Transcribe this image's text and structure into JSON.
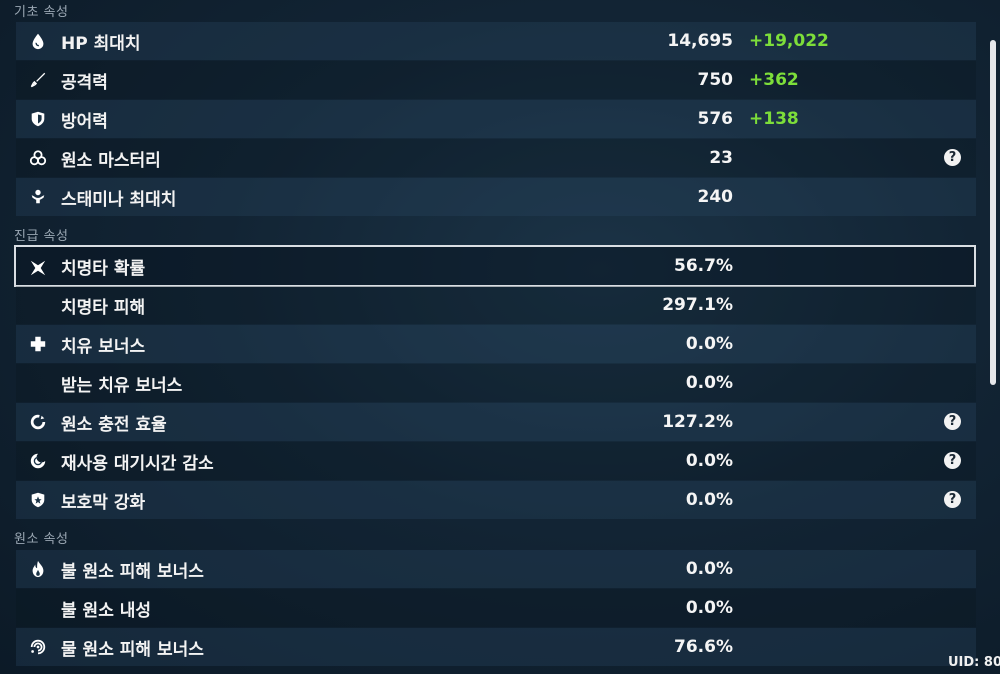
{
  "sections": {
    "basic": "기초 속성",
    "advanced": "진급 속성",
    "elemental": "원소 속성"
  },
  "stats": {
    "hp": {
      "label": "HP 최대치",
      "value": "14,695",
      "bonus": "+19,022",
      "icon": "water-drop-icon"
    },
    "atk": {
      "label": "공격력",
      "value": "750",
      "bonus": "+362",
      "icon": "sword-icon"
    },
    "def": {
      "label": "방어력",
      "value": "576",
      "bonus": "+138",
      "icon": "shield-icon"
    },
    "em": {
      "label": "원소 마스터리",
      "value": "23",
      "icon": "element-mastery-icon"
    },
    "stamina": {
      "label": "스태미나 최대치",
      "value": "240",
      "icon": "stamina-icon"
    },
    "crit_rate": {
      "label": "치명타 확률",
      "value": "56.7%",
      "icon": "crit-star-icon"
    },
    "crit_dmg": {
      "label": "치명타 피해",
      "value": "297.1%"
    },
    "healing": {
      "label": "치유 보너스",
      "value": "0.0%",
      "icon": "cross-icon"
    },
    "incoming_healing": {
      "label": "받는 치유 보너스",
      "value": "0.0%"
    },
    "er": {
      "label": "원소 충전 효율",
      "value": "127.2%",
      "icon": "recharge-ring-icon"
    },
    "cdr": {
      "label": "재사용 대기시간 감소",
      "value": "0.0%",
      "icon": "cooldown-moon-icon"
    },
    "shield": {
      "label": "보호막 강화",
      "value": "0.0%",
      "icon": "shield-star-icon"
    },
    "pyro_dmg": {
      "label": "불 원소 피해 보너스",
      "value": "0.0%",
      "icon": "pyro-icon"
    },
    "pyro_res": {
      "label": "불 원소 내성",
      "value": "0.0%"
    },
    "hydro_dmg": {
      "label": "물 원소 피해 보너스",
      "value": "76.6%",
      "icon": "hydro-icon"
    }
  },
  "help_symbol": "?",
  "uid": "UID: 80",
  "colors": {
    "bonus": "#7dde3a",
    "selected_border": "#d9dee3"
  }
}
